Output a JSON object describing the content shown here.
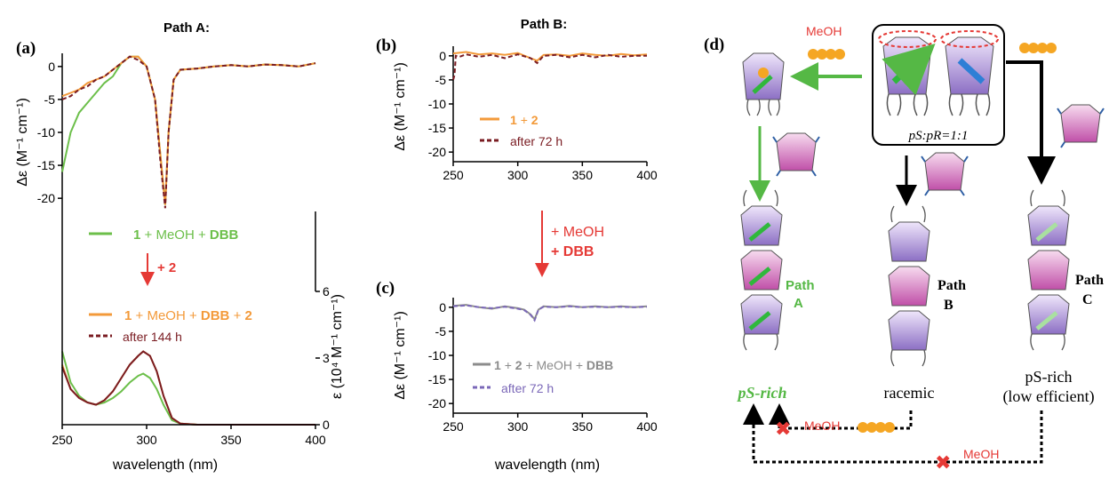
{
  "chart_data": [
    {
      "type": "line",
      "panel": "(a)",
      "title": "Path A:",
      "xlabel": "wavelength (nm)",
      "ylabel": "Δε (M⁻¹ cm⁻¹)",
      "y2label": "ε (10⁴ M⁻¹ cm⁻¹)",
      "xlim": [
        250,
        400
      ],
      "ylim": [
        -22,
        2
      ],
      "x_ticks": [
        "250",
        "300",
        "350",
        "400"
      ],
      "y_ticks": [
        "0",
        "-5",
        "-10",
        "-15",
        "-20"
      ],
      "y2lim": [
        0,
        6
      ],
      "y2_ticks": [
        "0",
        "3",
        "6"
      ],
      "series": [
        {
          "name": "1 + MeOH + DBB",
          "color": "#6cbf4a",
          "style": "solid",
          "x": [
            250,
            255,
            260,
            265,
            270,
            275,
            280,
            285,
            290,
            295,
            300,
            305,
            308,
            311,
            313,
            316,
            320,
            330,
            340,
            350,
            360,
            370,
            380,
            390,
            400
          ],
          "y": [
            -16,
            -10,
            -7,
            -5.5,
            -4,
            -2.5,
            -1.5,
            0.5,
            1.5,
            1.5,
            0,
            -5,
            -13,
            -21,
            -10,
            -2,
            -0.5,
            -0.3,
            0,
            0.2,
            0,
            0.3,
            0.2,
            0,
            0.5
          ]
        },
        {
          "name": "1 + MeOH + DBB + 2",
          "color": "#f39a3a",
          "style": "solid",
          "x": [
            250,
            255,
            260,
            265,
            270,
            275,
            280,
            285,
            290,
            295,
            300,
            305,
            308,
            311,
            313,
            316,
            320,
            330,
            340,
            350,
            360,
            370,
            380,
            390,
            400
          ],
          "y": [
            -4.5,
            -4,
            -3.5,
            -2.5,
            -2,
            -1.5,
            -0.5,
            0.5,
            1.5,
            1.5,
            0,
            -5,
            -13,
            -21,
            -10,
            -2,
            -0.5,
            -0.3,
            0,
            0.2,
            0,
            0.3,
            0.2,
            0,
            0.5
          ]
        },
        {
          "name": "after 144 h",
          "color": "#7a1c22",
          "style": "dashed",
          "x": [
            250,
            255,
            260,
            265,
            270,
            275,
            280,
            285,
            290,
            295,
            300,
            305,
            308,
            311,
            313,
            316,
            320,
            330,
            340,
            350,
            360,
            370,
            380,
            390,
            400
          ],
          "y": [
            -5,
            -4.5,
            -3.5,
            -3,
            -2,
            -1.5,
            -0.5,
            0.5,
            1.5,
            1,
            0,
            -5,
            -14,
            -21.5,
            -10,
            -2,
            -0.5,
            -0.3,
            0,
            0.2,
            0,
            0.3,
            0.2,
            0,
            0.5
          ]
        }
      ],
      "absorption_series": [
        {
          "name": "1 + MeOH + DBB",
          "color": "#6cbf4a",
          "x": [
            250,
            255,
            260,
            265,
            270,
            275,
            280,
            285,
            290,
            295,
            298,
            302,
            306,
            310,
            315,
            320,
            330,
            400
          ],
          "y": [
            3.3,
            1.9,
            1.3,
            1.0,
            0.9,
            1.0,
            1.2,
            1.5,
            1.9,
            2.2,
            2.3,
            2.1,
            1.6,
            0.9,
            0.2,
            0.05,
            0,
            0
          ]
        },
        {
          "name": "1 + MeOH + DBB + 2",
          "color": "#f39a3a",
          "x": [
            250,
            255,
            260,
            265,
            270,
            275,
            280,
            285,
            290,
            295,
            298,
            302,
            306,
            310,
            315,
            320,
            330,
            400
          ],
          "y": [
            2.7,
            1.6,
            1.2,
            1.0,
            0.9,
            1.1,
            1.5,
            2.1,
            2.7,
            3.1,
            3.3,
            3.1,
            2.4,
            1.3,
            0.3,
            0.05,
            0,
            0
          ]
        },
        {
          "name": "after 144 h",
          "color": "#7a1c22",
          "x": [
            250,
            255,
            260,
            265,
            270,
            275,
            280,
            285,
            290,
            295,
            298,
            302,
            306,
            310,
            315,
            320,
            330,
            400
          ],
          "y": [
            2.6,
            1.6,
            1.2,
            1.0,
            0.9,
            1.1,
            1.5,
            2.1,
            2.7,
            3.1,
            3.3,
            3.1,
            2.4,
            1.3,
            0.3,
            0.05,
            0,
            0
          ]
        }
      ],
      "annotations": [
        "+ 2"
      ]
    },
    {
      "type": "line",
      "panel": "(b)",
      "title": "Path B:",
      "ylabel": "Δε (M⁻¹ cm⁻¹)",
      "xlim": [
        250,
        400
      ],
      "ylim": [
        -22,
        2
      ],
      "x_ticks": [
        "250",
        "300",
        "350",
        "400"
      ],
      "y_ticks": [
        "0",
        "-5",
        "-10",
        "-15",
        "-20"
      ],
      "series": [
        {
          "name": "1 + 2",
          "color": "#f39a3a",
          "style": "solid",
          "x": [
            250,
            260,
            270,
            280,
            290,
            300,
            310,
            315,
            320,
            330,
            340,
            350,
            360,
            370,
            380,
            390,
            400
          ],
          "y": [
            0.5,
            0.8,
            0.3,
            0.5,
            0.2,
            0.6,
            -0.5,
            -1,
            0.2,
            0.3,
            0,
            0.5,
            0.2,
            0,
            0.4,
            0.1,
            0.3
          ]
        },
        {
          "name": "after 72 h",
          "color": "#7a1c22",
          "style": "dashed",
          "x": [
            250,
            251,
            252,
            255,
            260,
            270,
            280,
            290,
            300,
            310,
            315,
            320,
            330,
            340,
            350,
            360,
            370,
            380,
            390,
            400
          ],
          "y": [
            -5,
            -4,
            0,
            -0.2,
            0.3,
            -0.2,
            0.2,
            -0.5,
            0.3,
            -0.5,
            -1.5,
            0,
            0.2,
            -0.3,
            0.2,
            -0.3,
            0.2,
            -0.2,
            0,
            0
          ]
        }
      ]
    },
    {
      "type": "line",
      "panel": "(c)",
      "xlabel": "wavelength (nm)",
      "ylabel": "Δε (M⁻¹ cm⁻¹)",
      "xlim": [
        250,
        400
      ],
      "ylim": [
        -22,
        2
      ],
      "x_ticks": [
        "250",
        "300",
        "350",
        "400"
      ],
      "y_ticks": [
        "0",
        "-5",
        "-10",
        "-15",
        "-20"
      ],
      "series": [
        {
          "name": "1 + 2 + MeOH + DBB",
          "color": "#8c8c8c",
          "style": "solid",
          "x": [
            250,
            260,
            270,
            280,
            290,
            300,
            305,
            310,
            313,
            316,
            320,
            330,
            340,
            350,
            360,
            370,
            380,
            390,
            400
          ],
          "y": [
            0.3,
            0.5,
            0,
            -0.3,
            0.2,
            -0.2,
            -0.5,
            -1.5,
            -2.5,
            -0.5,
            0.2,
            0,
            0.3,
            0,
            0.2,
            0,
            0.2,
            0,
            0.2
          ]
        },
        {
          "name": "after 72 h",
          "color": "#7b68b8",
          "style": "dashed",
          "x": [
            250,
            260,
            270,
            280,
            290,
            300,
            305,
            310,
            313,
            316,
            320,
            330,
            340,
            350,
            360,
            370,
            380,
            390,
            400
          ],
          "y": [
            0.2,
            0.4,
            0,
            -0.2,
            0.1,
            -0.3,
            -0.6,
            -1.6,
            -2.7,
            -0.5,
            0.1,
            0,
            0.2,
            0,
            0.1,
            0,
            0.1,
            0,
            0.1
          ]
        }
      ]
    }
  ],
  "arrow_bc": {
    "line1": "+ MeOH",
    "line2": "+ DBB"
  },
  "scheme": {
    "panel": "(d)",
    "mix_label": "pS:pR=1:1",
    "meoh": "MeOH",
    "path_a": [
      "Path",
      "A"
    ],
    "path_b": [
      "Path",
      "B"
    ],
    "path_c": [
      "Path",
      "C"
    ],
    "result_a": "pS-rich",
    "result_b": "racemic",
    "result_c1": "pS-rich",
    "result_c2": "(low efficient)",
    "colors": {
      "green": "#55b845",
      "red": "#e53935",
      "purple": "#a78bd0",
      "pink": "#d16fbb"
    }
  }
}
